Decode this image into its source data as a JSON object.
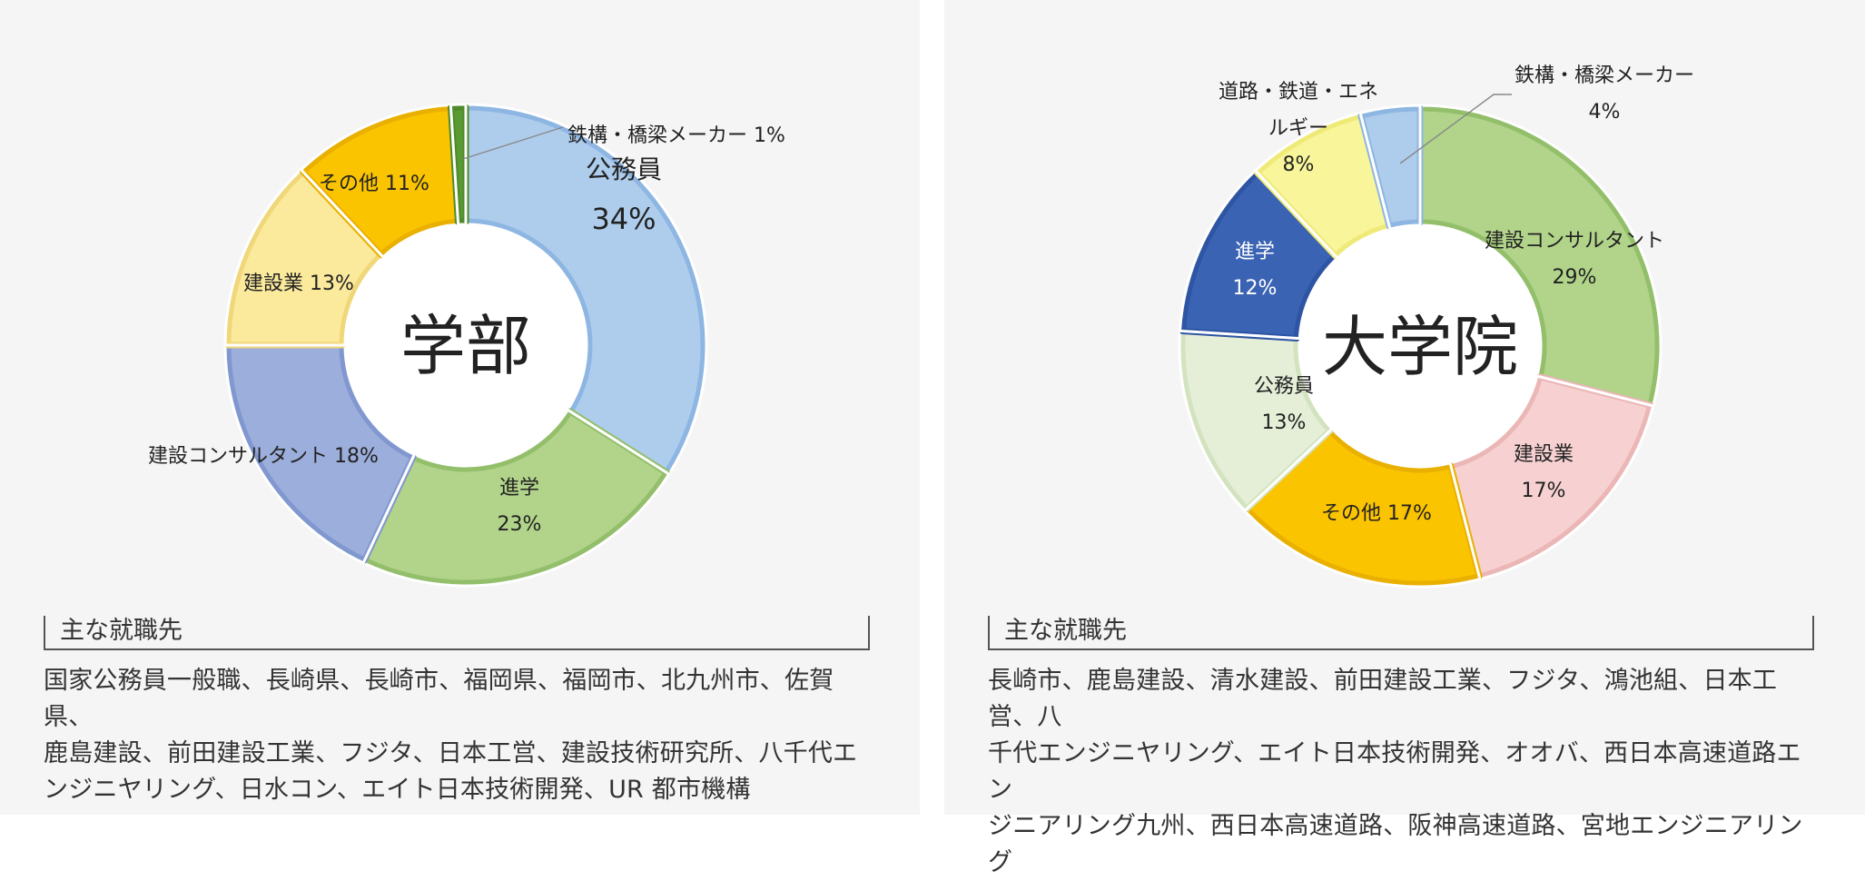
{
  "chart_data": [
    {
      "type": "pie",
      "center_label": "学部",
      "slices": [
        {
          "label": "公務員",
          "value": 34,
          "value_text": "34%",
          "color": "#aecdec",
          "edge": "#8eb6e2"
        },
        {
          "label": "進学",
          "value": 23,
          "value_text": "23%",
          "color": "#b1d48a",
          "edge": "#93bf6b"
        },
        {
          "label": "建設コンサルタント",
          "value": 18,
          "value_text": "建設コンサルタント 18%",
          "color": "#9caedc",
          "edge": "#8097cf"
        },
        {
          "label": "建設業",
          "value": 13,
          "value_text": "建設業 13%",
          "color": "#fbe99c",
          "edge": "#f0d77a"
        },
        {
          "label": "その他",
          "value": 11,
          "value_text": "その他 11%",
          "color": "#fbc401",
          "edge": "#eab000"
        },
        {
          "label": "鉄構・橋梁メーカー",
          "value": 1,
          "value_text": "鉄構・橋梁メーカー 1%",
          "color": "#5a9a32",
          "edge": "#4d8a2a"
        }
      ]
    },
    {
      "type": "pie",
      "center_label": "大学院",
      "slices": [
        {
          "label": "建設コンサルタント",
          "value": 29,
          "value_text": "29%",
          "color": "#b1d48a",
          "edge": "#93bf6b"
        },
        {
          "label": "建設業",
          "value": 17,
          "value_text": "17%",
          "color": "#f7d1d1",
          "edge": "#ebb6b6"
        },
        {
          "label": "その他",
          "value": 17,
          "value_text": "その他 17%",
          "color": "#fbc401",
          "edge": "#eab000"
        },
        {
          "label": "公務員",
          "value": 13,
          "value_text": "13%",
          "color": "#e5efd7",
          "edge": "#d3e3bf"
        },
        {
          "label": "進学",
          "value": 12,
          "value_text": "12%",
          "color": "#3b63b3",
          "edge": "#2e55a3"
        },
        {
          "label": "道路・鉄道・エネルギー",
          "value": 8,
          "value_text": "8%",
          "label_lines": [
            "道路・鉄道・エネ",
            "ルギー"
          ],
          "color": "#f8f59a",
          "edge": "#efea78"
        },
        {
          "label": "鉄構・橋梁メーカー",
          "value": 4,
          "value_text": "4%",
          "color": "#aecdec",
          "edge": "#8eb6e2"
        }
      ]
    }
  ],
  "employers": [
    {
      "heading": "主な就職先",
      "lines": [
        "国家公務員一般職、長崎県、長崎市、福岡県、福岡市、北九州市、佐賀県、",
        "鹿島建設、前田建設工業、フジタ、日本工営、建設技術研究所、八千代エ",
        "ンジニヤリング、日水コン、エイト日本技術開発、UR 都市機構"
      ]
    },
    {
      "heading": "主な就職先",
      "lines": [
        "長崎市、鹿島建設、清水建設、前田建設工業、フジタ、鴻池組、日本工営、八",
        "千代エンジニヤリング、エイト日本技術開発、オオバ、西日本高速道路エン",
        "ジニアリング九州、西日本高速道路、阪神高速道路、宮地エンジニアリング"
      ]
    }
  ]
}
